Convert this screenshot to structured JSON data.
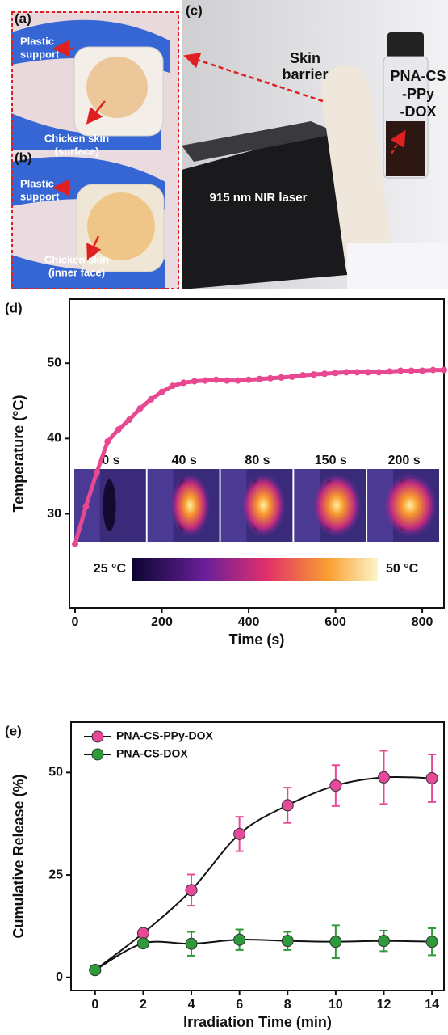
{
  "panels": {
    "a": {
      "label": "(a)",
      "support": [
        "Plastic",
        "support"
      ],
      "skin": [
        "Chicken skin",
        "(surface)"
      ]
    },
    "b": {
      "label": "(b)",
      "support": [
        "Plastic",
        "support"
      ],
      "skin": [
        "Chicken skin",
        "(inner face)"
      ]
    },
    "c": {
      "label": "(c)",
      "barrier": [
        "Skin",
        "barrier"
      ],
      "sample": [
        "PNA-CS",
        "-PPy",
        "-DOX"
      ],
      "laser": "915 nm NIR laser"
    }
  },
  "chart_data": [
    {
      "type": "line",
      "panel_label": "(d)",
      "x_label": "Time (s)",
      "y_label": "Temperature (°C)",
      "color": "#e8488f",
      "x": [
        0,
        25,
        50,
        75,
        100,
        125,
        150,
        175,
        200,
        225,
        250,
        275,
        300,
        325,
        350,
        375,
        400,
        425,
        450,
        475,
        500,
        525,
        550,
        575,
        600,
        625,
        650,
        675,
        700,
        725,
        750,
        775,
        800,
        825,
        850
      ],
      "values": [
        26,
        31,
        35.5,
        39.6,
        41.2,
        42.5,
        44,
        45.2,
        46.2,
        47,
        47.4,
        47.6,
        47.7,
        47.8,
        47.7,
        47.7,
        47.8,
        47.9,
        48,
        48.1,
        48.2,
        48.4,
        48.5,
        48.6,
        48.7,
        48.8,
        48.8,
        48.8,
        48.8,
        48.9,
        49,
        49,
        49,
        49.1,
        49.1
      ],
      "xlim": [
        -13,
        850
      ],
      "ylim": [
        17.5,
        58.5
      ],
      "xticks": [
        0,
        200,
        400,
        600,
        800
      ],
      "yticks": [
        30,
        40,
        50
      ],
      "inset": {
        "labels": [
          "0 s",
          "40 s",
          "80 s",
          "150 s",
          "200 s"
        ],
        "colorbar_labels": [
          "25 °C",
          "50 °C"
        ]
      }
    },
    {
      "type": "line",
      "panel_label": "(e)",
      "x_label": "Irradiation Time (min)",
      "y_label": "Cumulative Release (%)",
      "x": [
        0,
        2,
        4,
        6,
        8,
        10,
        12,
        14
      ],
      "series": [
        {
          "name": "PNA-CS-PPy-DOX",
          "color": "#e8489a",
          "values": [
            1.8,
            10.8,
            21.3,
            35,
            42,
            46.8,
            48.8,
            48.6
          ],
          "errors": [
            0.5,
            1,
            3.8,
            4.2,
            4.3,
            5,
            6.5,
            5.8
          ]
        },
        {
          "name": "PNA-CS-DOX",
          "color": "#2e9a3a",
          "values": [
            1.8,
            8.3,
            8.2,
            9.2,
            8.9,
            8.7,
            8.9,
            8.7
          ],
          "errors": [
            0.5,
            1,
            2.9,
            2.5,
            2.2,
            4,
            2.5,
            3.3
          ]
        }
      ],
      "xlim": [
        -1,
        14.5
      ],
      "ylim": [
        -3.2,
        62.3
      ],
      "xticks": [
        0,
        2,
        4,
        6,
        8,
        10,
        12,
        14
      ],
      "yticks": [
        0,
        25,
        50
      ],
      "legend": "upper left"
    }
  ]
}
